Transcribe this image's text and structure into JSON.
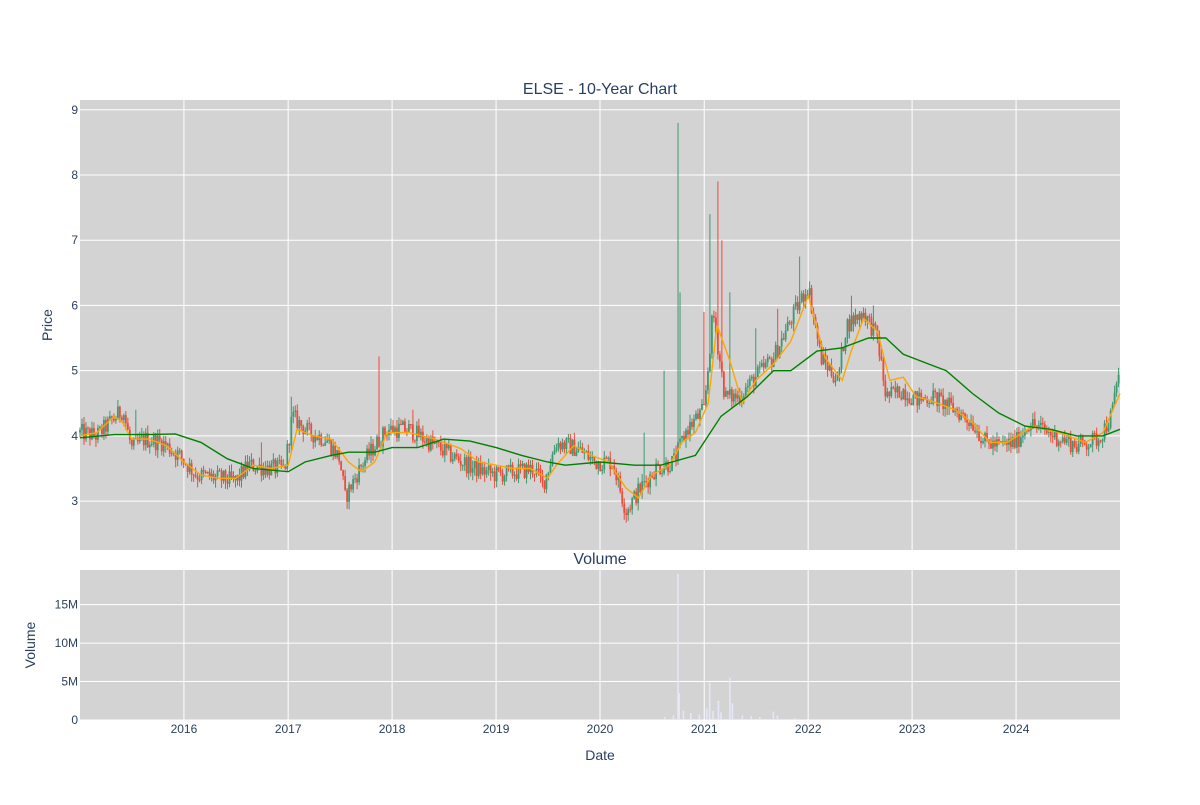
{
  "chart_data": [
    {
      "type": "candlestick",
      "title": "ELSE - 10-Year Chart",
      "ylabel": "Price",
      "ylim": [
        2.25,
        9.15
      ],
      "yticks": [
        3,
        4,
        5,
        6,
        7,
        8,
        9
      ],
      "xlim": [
        "2015-01-01",
        "2024-12-31"
      ],
      "grid": true,
      "increasing_color": "#3d9970",
      "decreasing_color": "#ef4a3a",
      "plot_bgcolor": "#d3d3d3",
      "moving_averages": [
        {
          "color": "#ffa500",
          "points": [
            [
              "2015-01-01",
              4.0
            ],
            [
              "2015-03-01",
              4.05
            ],
            [
              "2015-05-01",
              4.3
            ],
            [
              "2015-06-01",
              4.2
            ],
            [
              "2015-07-01",
              3.95
            ],
            [
              "2015-09-01",
              3.95
            ],
            [
              "2015-11-01",
              3.85
            ],
            [
              "2016-01-01",
              3.6
            ],
            [
              "2016-03-01",
              3.4
            ],
            [
              "2016-05-01",
              3.35
            ],
            [
              "2016-07-01",
              3.35
            ],
            [
              "2016-09-01",
              3.55
            ],
            [
              "2016-11-01",
              3.5
            ],
            [
              "2017-01-01",
              3.55
            ],
            [
              "2017-02-01",
              4.1
            ],
            [
              "2017-04-01",
              4.0
            ],
            [
              "2017-06-01",
              3.95
            ],
            [
              "2017-08-01",
              3.6
            ],
            [
              "2017-09-15",
              3.45
            ],
            [
              "2017-11-01",
              3.6
            ],
            [
              "2017-12-15",
              4.05
            ],
            [
              "2018-03-01",
              4.05
            ],
            [
              "2018-06-01",
              3.95
            ],
            [
              "2018-09-01",
              3.8
            ],
            [
              "2018-11-01",
              3.6
            ],
            [
              "2019-01-01",
              3.55
            ],
            [
              "2019-03-01",
              3.5
            ],
            [
              "2019-05-01",
              3.5
            ],
            [
              "2019-07-01",
              3.35
            ],
            [
              "2019-08-01",
              3.55
            ],
            [
              "2019-10-01",
              3.85
            ],
            [
              "2019-12-01",
              3.7
            ],
            [
              "2020-02-01",
              3.6
            ],
            [
              "2020-04-01",
              3.2
            ],
            [
              "2020-05-15",
              3.05
            ],
            [
              "2020-07-01",
              3.4
            ],
            [
              "2020-09-01",
              3.55
            ],
            [
              "2020-10-15",
              3.9
            ],
            [
              "2020-12-01",
              4.05
            ],
            [
              "2021-01-15",
              4.5
            ],
            [
              "2021-02-15",
              5.7
            ],
            [
              "2021-04-01",
              5.15
            ],
            [
              "2021-05-15",
              4.5
            ],
            [
              "2021-07-01",
              4.85
            ],
            [
              "2021-09-01",
              5.1
            ],
            [
              "2021-11-01",
              5.45
            ],
            [
              "2022-01-01",
              6.15
            ],
            [
              "2022-03-01",
              5.2
            ],
            [
              "2022-05-01",
              4.85
            ],
            [
              "2022-06-01",
              5.3
            ],
            [
              "2022-07-15",
              5.8
            ],
            [
              "2022-09-01",
              5.6
            ],
            [
              "2022-10-15",
              4.85
            ],
            [
              "2022-12-01",
              4.9
            ],
            [
              "2023-01-15",
              4.6
            ],
            [
              "2023-03-01",
              4.55
            ],
            [
              "2023-06-01",
              4.4
            ],
            [
              "2023-08-01",
              4.2
            ],
            [
              "2023-10-01",
              3.9
            ],
            [
              "2023-12-01",
              3.9
            ],
            [
              "2024-03-01",
              4.15
            ],
            [
              "2024-06-01",
              4.05
            ],
            [
              "2024-09-01",
              3.9
            ],
            [
              "2024-11-01",
              4.05
            ],
            [
              "2024-12-31",
              4.65
            ]
          ]
        },
        {
          "color": "#008000",
          "points": [
            [
              "2015-01-01",
              3.97
            ],
            [
              "2015-05-01",
              4.02
            ],
            [
              "2015-09-01",
              4.02
            ],
            [
              "2015-12-01",
              4.03
            ],
            [
              "2016-03-01",
              3.9
            ],
            [
              "2016-06-01",
              3.65
            ],
            [
              "2016-09-01",
              3.5
            ],
            [
              "2017-01-01",
              3.45
            ],
            [
              "2017-03-01",
              3.6
            ],
            [
              "2017-06-01",
              3.7
            ],
            [
              "2017-08-01",
              3.75
            ],
            [
              "2017-11-01",
              3.75
            ],
            [
              "2018-01-01",
              3.82
            ],
            [
              "2018-04-01",
              3.82
            ],
            [
              "2018-07-01",
              3.95
            ],
            [
              "2018-10-01",
              3.92
            ],
            [
              "2019-01-01",
              3.82
            ],
            [
              "2019-04-01",
              3.7
            ],
            [
              "2019-07-01",
              3.6
            ],
            [
              "2019-09-01",
              3.55
            ],
            [
              "2020-01-01",
              3.6
            ],
            [
              "2020-05-01",
              3.55
            ],
            [
              "2020-08-01",
              3.55
            ],
            [
              "2020-12-01",
              3.7
            ],
            [
              "2021-03-01",
              4.3
            ],
            [
              "2021-06-01",
              4.6
            ],
            [
              "2021-09-01",
              5.0
            ],
            [
              "2021-11-01",
              5.0
            ],
            [
              "2022-02-01",
              5.3
            ],
            [
              "2022-05-01",
              5.35
            ],
            [
              "2022-08-01",
              5.5
            ],
            [
              "2022-10-01",
              5.5
            ],
            [
              "2022-12-01",
              5.25
            ],
            [
              "2023-03-01",
              5.1
            ],
            [
              "2023-05-01",
              5.0
            ],
            [
              "2023-08-01",
              4.65
            ],
            [
              "2023-11-01",
              4.35
            ],
            [
              "2024-02-01",
              4.15
            ],
            [
              "2024-05-01",
              4.1
            ],
            [
              "2024-08-01",
              4.0
            ],
            [
              "2024-11-01",
              4.0
            ],
            [
              "2024-12-31",
              4.1
            ]
          ]
        }
      ],
      "price_path": [
        [
          "2015-01-01",
          4.05
        ],
        [
          "2015-03-01",
          4.0
        ],
        [
          "2015-04-15",
          4.2
        ],
        [
          "2015-06-01",
          4.4
        ],
        [
          "2015-07-01",
          3.8
        ],
        [
          "2015-08-15",
          3.95
        ],
        [
          "2015-10-15",
          3.9
        ],
        [
          "2015-12-15",
          3.7
        ],
        [
          "2016-02-15",
          3.4
        ],
        [
          "2016-05-01",
          3.35
        ],
        [
          "2016-07-01",
          3.3
        ],
        [
          "2016-08-15",
          3.55
        ],
        [
          "2016-11-01",
          3.5
        ],
        [
          "2016-12-20",
          3.5
        ],
        [
          "2017-01-15",
          4.3
        ],
        [
          "2017-03-15",
          4.05
        ],
        [
          "2017-05-15",
          3.95
        ],
        [
          "2017-07-01",
          3.65
        ],
        [
          "2017-07-20",
          3.05
        ],
        [
          "2017-09-15",
          3.55
        ],
        [
          "2017-11-10",
          3.9
        ],
        [
          "2017-12-15",
          4.1
        ],
        [
          "2018-03-01",
          4.1
        ],
        [
          "2018-06-01",
          3.85
        ],
        [
          "2018-08-15",
          3.65
        ],
        [
          "2018-10-15",
          3.5
        ],
        [
          "2019-01-01",
          3.4
        ],
        [
          "2019-03-15",
          3.45
        ],
        [
          "2019-05-15",
          3.5
        ],
        [
          "2019-06-15",
          3.25
        ],
        [
          "2019-08-01",
          3.9
        ],
        [
          "2019-10-15",
          3.8
        ],
        [
          "2019-12-15",
          3.6
        ],
        [
          "2020-02-15",
          3.6
        ],
        [
          "2020-04-01",
          2.85
        ],
        [
          "2020-05-15",
          3.15
        ],
        [
          "2020-07-15",
          3.5
        ],
        [
          "2020-09-15",
          3.6
        ],
        [
          "2020-11-01",
          4.1
        ],
        [
          "2021-01-01",
          4.4
        ],
        [
          "2021-02-01",
          5.9
        ],
        [
          "2021-03-15",
          4.6
        ],
        [
          "2021-05-01",
          4.6
        ],
        [
          "2021-07-01",
          4.9
        ],
        [
          "2021-09-01",
          5.2
        ],
        [
          "2021-11-15",
          5.9
        ],
        [
          "2022-01-01",
          6.3
        ],
        [
          "2022-02-15",
          5.2
        ],
        [
          "2022-04-15",
          4.85
        ],
        [
          "2022-05-15",
          5.7
        ],
        [
          "2022-07-15",
          5.9
        ],
        [
          "2022-09-01",
          5.5
        ],
        [
          "2022-10-01",
          4.6
        ],
        [
          "2022-12-01",
          4.7
        ],
        [
          "2023-01-15",
          4.55
        ],
        [
          "2023-03-15",
          4.6
        ],
        [
          "2023-06-01",
          4.4
        ],
        [
          "2023-08-01",
          4.2
        ],
        [
          "2023-09-15",
          3.9
        ],
        [
          "2023-11-01",
          3.85
        ],
        [
          "2024-01-01",
          3.9
        ],
        [
          "2024-02-15",
          4.2
        ],
        [
          "2024-05-15",
          4.0
        ],
        [
          "2024-08-01",
          3.85
        ],
        [
          "2024-10-15",
          3.95
        ],
        [
          "2024-12-01",
          4.3
        ],
        [
          "2024-12-31",
          5.1
        ]
      ],
      "price_spikes": [
        [
          "2015-05-15",
          4.55
        ],
        [
          "2015-07-15",
          4.4
        ],
        [
          "2016-06-15",
          3.0
        ],
        [
          "2016-10-01",
          3.9
        ],
        [
          "2017-01-10",
          4.6
        ],
        [
          "2017-11-15",
          5.22
        ],
        [
          "2018-03-15",
          4.4
        ],
        [
          "2020-06-01",
          4.05
        ],
        [
          "2020-08-15",
          5.0
        ],
        [
          "2020-10-01",
          8.8
        ],
        [
          "2020-10-05",
          6.2
        ],
        [
          "2021-01-01",
          5.9
        ],
        [
          "2021-01-20",
          7.4
        ],
        [
          "2021-02-20",
          7.9
        ],
        [
          "2021-03-01",
          7.0
        ],
        [
          "2021-04-01",
          6.2
        ],
        [
          "2021-07-01",
          5.65
        ],
        [
          "2021-09-15",
          5.95
        ],
        [
          "2021-12-01",
          6.75
        ],
        [
          "2022-06-01",
          6.15
        ],
        [
          "2022-08-15",
          6.0
        ]
      ]
    },
    {
      "type": "bar",
      "title": "Volume",
      "xlabel": "Date",
      "ylabel": "Volume",
      "ylim": [
        0,
        19500000
      ],
      "yticks": [
        0,
        5000000,
        10000000,
        15000000
      ],
      "ytick_labels": [
        "0",
        "5M",
        "10M",
        "15M"
      ],
      "xticks": [
        "2016",
        "2017",
        "2018",
        "2019",
        "2020",
        "2021",
        "2022",
        "2023",
        "2024"
      ],
      "grid": true,
      "bar_color": "#e6e6fa",
      "plot_bgcolor": "#d3d3d3",
      "values": [
        [
          "2020-08-15",
          400000
        ],
        [
          "2020-09-15",
          600000
        ],
        [
          "2020-10-01",
          19000000
        ],
        [
          "2020-10-05",
          3500000
        ],
        [
          "2020-10-20",
          1200000
        ],
        [
          "2020-11-15",
          900000
        ],
        [
          "2020-12-15",
          700000
        ],
        [
          "2021-01-10",
          1500000
        ],
        [
          "2021-01-20",
          4800000
        ],
        [
          "2021-02-01",
          1200000
        ],
        [
          "2021-02-20",
          2500000
        ],
        [
          "2021-03-01",
          1000000
        ],
        [
          "2021-04-01",
          5500000
        ],
        [
          "2021-04-10",
          2200000
        ],
        [
          "2021-05-15",
          600000
        ],
        [
          "2021-06-15",
          500000
        ],
        [
          "2021-07-15",
          400000
        ],
        [
          "2021-09-01",
          1100000
        ],
        [
          "2021-09-15",
          600000
        ],
        [
          "2021-11-15",
          300000
        ]
      ]
    }
  ]
}
